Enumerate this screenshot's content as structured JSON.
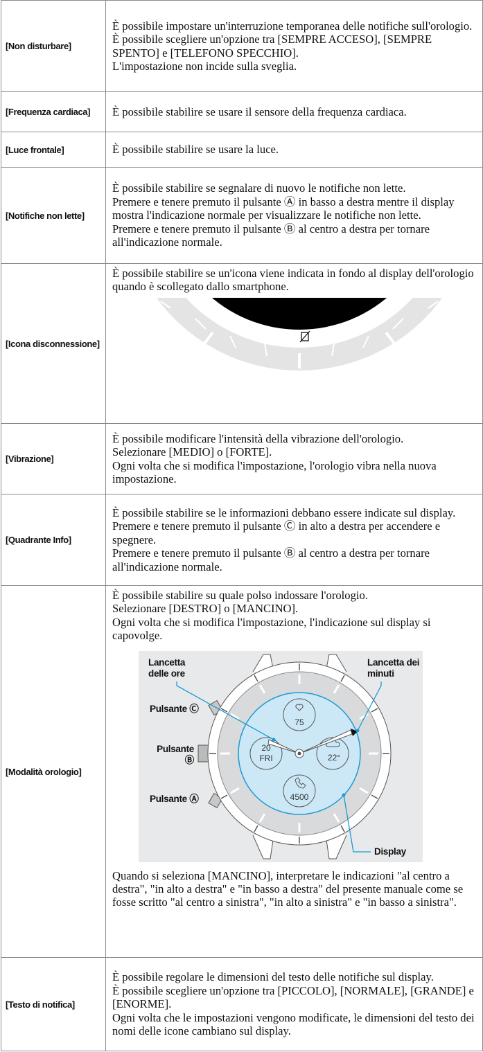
{
  "table": {
    "rows": [
      {
        "label": "[Non disturbare]",
        "text": [
          "È possibile impostare un'interruzione temporanea delle notifiche sull'orologio.",
          "È possibile scegliere un'opzione tra [SEMPRE ACCESO], [SEMPRE SPENTO] e [TELEFONO SPECCHIO].",
          "L'impostazione non incide sulla sveglia."
        ]
      },
      {
        "label": "[Frequenza cardiaca]",
        "text": [
          "È possibile stabilire se usare il sensore della frequenza cardiaca."
        ]
      },
      {
        "label": "[Luce frontale]",
        "text": [
          "È possibile stabilire se usare la luce."
        ]
      },
      {
        "label": "[Notifiche non lette]",
        "text": [
          "È possibile stabilire se segnalare di nuovo le notifiche non lette.",
          "Premere e tenere premuto il pulsante Ⓐ in basso a destra mentre il display mostra l'indicazione normale per visualizzare le notifiche non lette.",
          "Premere e tenere premuto il pulsante Ⓑ al centro a destra per tornare all'indicazione normale."
        ]
      },
      {
        "label": "[Icona disconnessione]",
        "text": [
          "È possibile stabilire se un'icona viene indicata in fondo al display dell'orologio quando è scollegato dallo smartphone."
        ]
      },
      {
        "label": "[Vibrazione]",
        "text": [
          "È possibile modificare l'intensità della vibrazione dell'orologio.",
          "Selezionare [MEDIO] o [FORTE].",
          "Ogni volta che si modifica l'impostazione, l'orologio vibra nella nuova impostazione."
        ]
      },
      {
        "label": "[Quadrante Info]",
        "text": [
          "È possibile stabilire se le informazioni debbano essere indicate sul display.",
          "Premere e tenere premuto il pulsante Ⓒ in alto a destra per accendere e spegnere.",
          "Premere e tenere premuto il pulsante Ⓑ al centro a destra per tornare all'indicazione normale."
        ]
      },
      {
        "label": "[Modalità orologio]",
        "text": [
          "È possibile stabilire su quale polso indossare l'orologio.",
          "Selezionare [DESTRO] o [MANCINO].",
          "Ogni volta che si modifica l'impostazione, l'indicazione sul display si capovolge."
        ],
        "figure": {
          "hour_hand": "Lancetta delle ore",
          "minute_hand": "Lancetta dei minuti",
          "button_c": "Pulsante Ⓒ",
          "button_b": "Pulsante Ⓑ",
          "button_a": "Pulsante Ⓐ",
          "display": "Display",
          "heart": "75",
          "day": "20",
          "weekday": "FRI",
          "weather": "22°",
          "steps": "4500"
        },
        "text_after": [
          "Quando si seleziona [MANCINO], interpretare le indicazioni \"al centro a destra\", \"in alto a destra\" e \"in basso a destra\" del presente manuale come se fosse scritto \"al centro a sinistra\", \"in alto a sinistra\" e \"in basso a sinistra\"."
        ]
      },
      {
        "label": "[Testo di notifica]",
        "text": [
          "È possibile regolare le dimensioni del testo delle notifiche sul display.",
          "È possibile scegliere un'opzione tra [PICCOLO], [NORMALE], [GRANDE] e [ENORME].",
          "Ogni volta che le impostazioni vengono modificate, le dimensioni del testo dei nomi delle icone cambiano sul display."
        ]
      }
    ]
  }
}
